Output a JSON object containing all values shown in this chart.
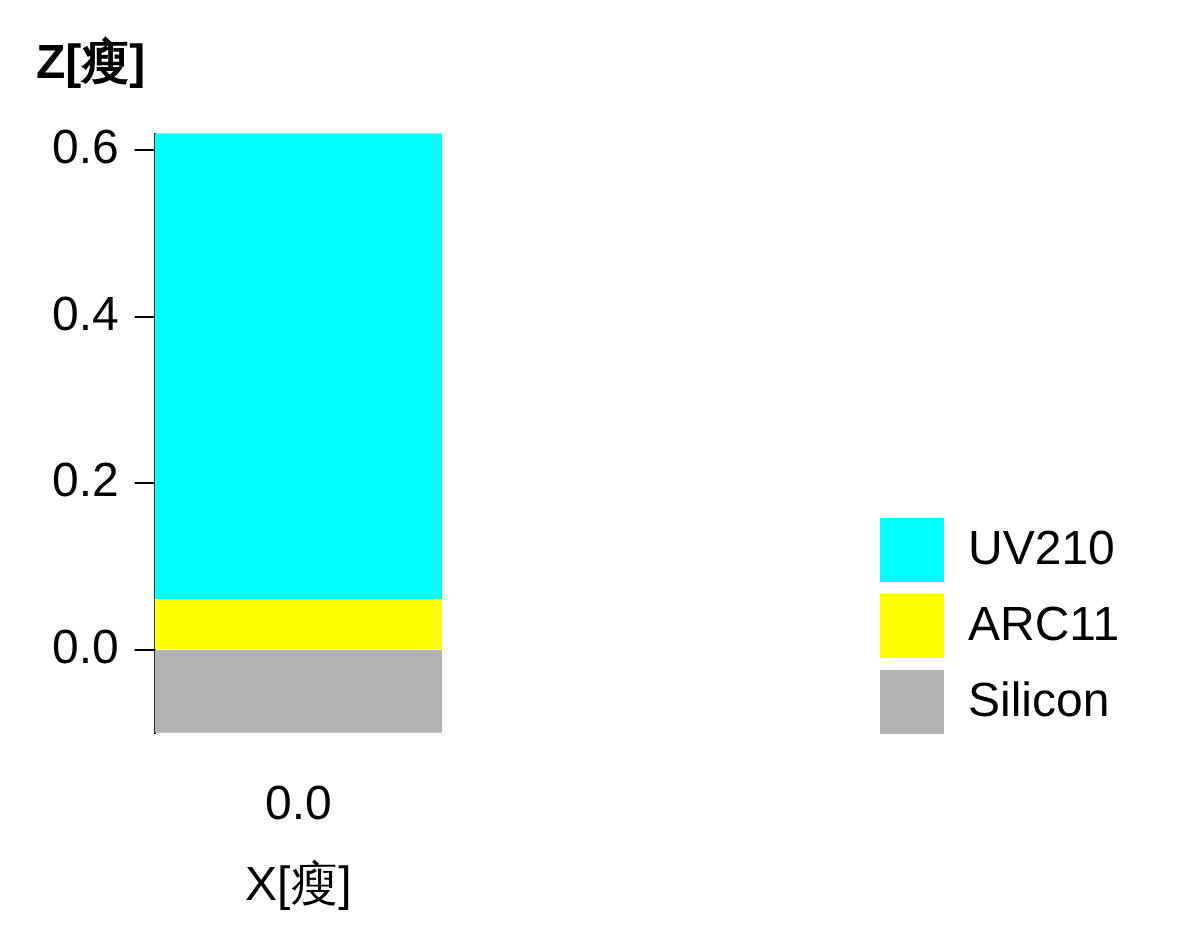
{
  "chart_data": {
    "type": "bar",
    "title": "Z[瘦]",
    "xlabel": "X[瘦]",
    "categories": [
      "0.0"
    ],
    "series": [
      {
        "name": "Silicon",
        "color": "#b3b3b3",
        "values": [
          0.1
        ],
        "base": [
          -0.1
        ]
      },
      {
        "name": "ARC11",
        "color": "#ffff00",
        "values": [
          0.06
        ],
        "base": [
          0
        ]
      },
      {
        "name": "UV210",
        "color": "#00ffff",
        "values": [
          0.56
        ],
        "base": [
          0.06
        ]
      }
    ],
    "ylim": [
      -0.1,
      0.62
    ],
    "yticks": [
      {
        "value": 0,
        "label": "0.0"
      },
      {
        "value": 0.2,
        "label": "0.2"
      },
      {
        "value": 0.4,
        "label": "0.4"
      },
      {
        "value": 0.6,
        "label": "0.6"
      }
    ],
    "grid": false,
    "legend": "right"
  }
}
